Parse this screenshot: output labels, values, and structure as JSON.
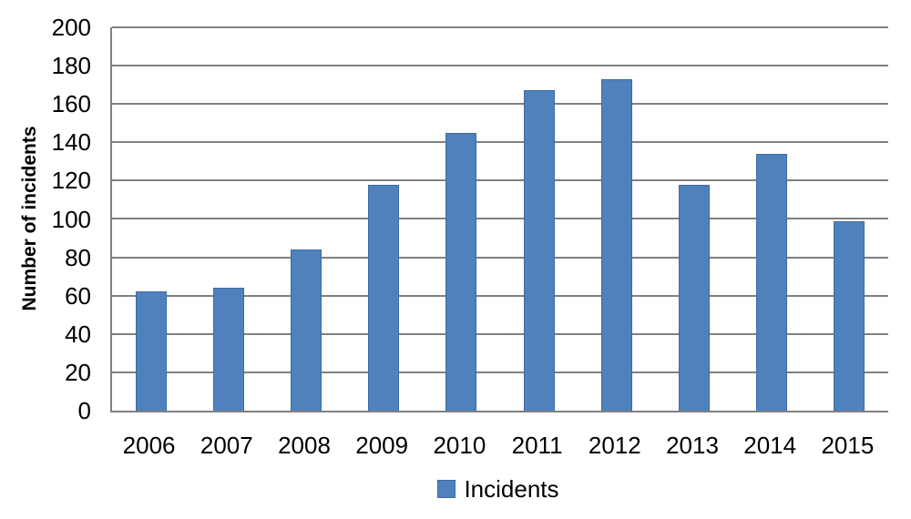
{
  "chart_data": {
    "type": "bar",
    "title": "",
    "xlabel": "",
    "ylabel": "Number of incidents",
    "categories": [
      "2006",
      "2007",
      "2008",
      "2009",
      "2010",
      "2011",
      "2012",
      "2013",
      "2014",
      "2015"
    ],
    "series": [
      {
        "name": "Incidents",
        "values": [
          62,
          64,
          84,
          118,
          145,
          167,
          173,
          118,
          134,
          99
        ]
      }
    ],
    "ylim": [
      0,
      200
    ],
    "ytick_step": 20,
    "grid": true,
    "legend_position": "bottom-center",
    "colors": {
      "bar_fill": "#4F81BD",
      "bar_border": "#3D6BA3",
      "gridline": "#808080",
      "axis_line": "#808080",
      "text": "#000000",
      "background": "#FFFFFF"
    }
  }
}
